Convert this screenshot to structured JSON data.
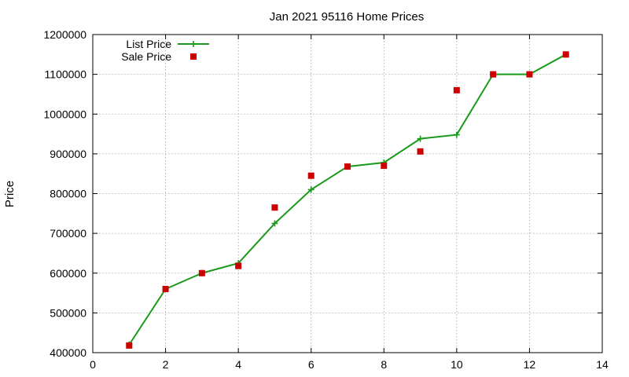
{
  "chart_data": {
    "type": "line",
    "title": "Jan 2021 95116 Home Prices",
    "xlabel": "",
    "ylabel": "Price",
    "xlim": [
      0,
      14
    ],
    "ylim": [
      400000,
      1200000
    ],
    "x_ticks": [
      "0",
      "2",
      "4",
      "6",
      "8",
      "10",
      "12",
      "14"
    ],
    "y_ticks": [
      "400000",
      "500000",
      "600000",
      "700000",
      "800000",
      "900000",
      "1000000",
      "1100000",
      "1200000"
    ],
    "grid": true,
    "legend_position": "top-left",
    "series": [
      {
        "name": "List Price",
        "style": "line+cross",
        "color": "#1a9a1a",
        "x": [
          1,
          2,
          3,
          4,
          5,
          6,
          7,
          8,
          9,
          10,
          11,
          12,
          13
        ],
        "y": [
          420000,
          560000,
          600000,
          625000,
          725000,
          810000,
          868000,
          878000,
          938000,
          948000,
          1100000,
          1100000,
          1150000
        ]
      },
      {
        "name": "Sale Price",
        "style": "square",
        "color": "#cc0000",
        "x": [
          1,
          2,
          3,
          4,
          5,
          6,
          7,
          8,
          9,
          10,
          11,
          12,
          13
        ],
        "y": [
          418000,
          560000,
          600000,
          618000,
          765000,
          845000,
          868000,
          870000,
          906000,
          1060000,
          1100000,
          1100000,
          1150000
        ]
      }
    ]
  }
}
